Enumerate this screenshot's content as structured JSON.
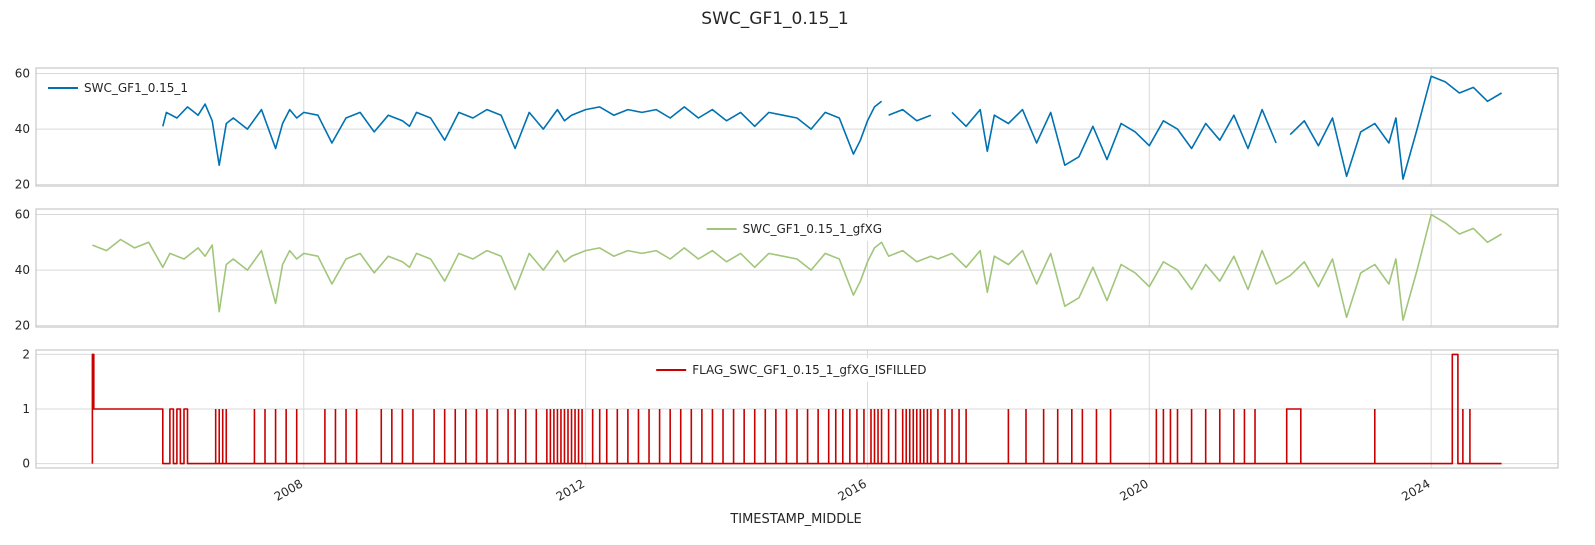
{
  "figure": {
    "suptitle": "SWC_GF1_0.15_1"
  },
  "chart_data": [
    {
      "type": "line",
      "legend_placement": "upper-left",
      "grid": true,
      "ylim": [
        19.5,
        62
      ],
      "yticks": [
        20,
        40,
        60
      ],
      "xlim": [
        2004.2,
        2025.8
      ],
      "xticks": [
        2008,
        2012,
        2016,
        2020,
        2024
      ],
      "series": [
        {
          "name": "SWC_GF1_0.15_1",
          "color": "#0072B2",
          "x": [
            2006.0,
            2006.05,
            2006.2,
            2006.35,
            2006.5,
            2006.6,
            2006.7,
            2006.8,
            2006.9,
            2007.0,
            2007.2,
            2007.4,
            2007.6,
            2007.7,
            2007.8,
            2007.9,
            2008.0,
            2008.2,
            2008.4,
            2008.6,
            2008.8,
            2009.0,
            2009.2,
            2009.4,
            2009.5,
            2009.6,
            2009.8,
            2010.0,
            2010.2,
            2010.4,
            2010.6,
            2010.8,
            2011.0,
            2011.2,
            2011.4,
            2011.6,
            2011.7,
            2011.8,
            2012.0,
            2012.2,
            2012.4,
            2012.6,
            2012.8,
            2013.0,
            2013.2,
            2013.4,
            2013.6,
            2013.8,
            2014.0,
            2014.2,
            2014.4,
            2014.6,
            2014.8,
            2015.0,
            2015.2,
            2015.4,
            2015.6,
            2015.8,
            2015.9,
            2016.0,
            2016.1,
            2016.2,
            null,
            2016.3,
            2016.5,
            2016.7,
            2016.9,
            null,
            2017.2,
            2017.4,
            2017.6,
            2017.7,
            2017.8,
            2018.0,
            2018.2,
            2018.4,
            2018.6,
            2018.8,
            2019.0,
            2019.2,
            2019.4,
            2019.6,
            2019.8,
            2020.0,
            2020.2,
            2020.4,
            2020.6,
            2020.8,
            2021.0,
            2021.2,
            2021.4,
            2021.6,
            2021.8,
            null,
            2022.0,
            2022.2,
            2022.4,
            2022.6,
            2022.8,
            2023.0,
            2023.2,
            2023.4,
            2023.5,
            2023.6,
            2023.8,
            2024.0,
            2024.2,
            2024.4,
            2024.6,
            2024.8,
            2025.0
          ],
          "y": [
            41,
            46,
            44,
            48,
            45,
            49,
            43,
            27,
            42,
            44,
            40,
            47,
            33,
            42,
            47,
            44,
            46,
            45,
            35,
            44,
            46,
            39,
            45,
            43,
            41,
            46,
            44,
            36,
            46,
            44,
            47,
            45,
            33,
            46,
            40,
            47,
            43,
            45,
            47,
            48,
            45,
            47,
            46,
            47,
            44,
            48,
            44,
            47,
            43,
            46,
            41,
            46,
            45,
            44,
            40,
            46,
            44,
            31,
            36,
            43,
            48,
            50,
            null,
            45,
            47,
            43,
            45,
            null,
            46,
            41,
            47,
            32,
            45,
            42,
            47,
            35,
            46,
            27,
            30,
            41,
            29,
            42,
            39,
            34,
            43,
            40,
            33,
            42,
            36,
            45,
            33,
            47,
            35,
            null,
            38,
            43,
            34,
            44,
            23,
            39,
            42,
            35,
            44,
            22,
            40,
            59,
            57,
            53,
            55,
            50,
            53
          ],
          "style": "solid"
        }
      ],
      "legend": [
        "SWC_GF1_0.15_1"
      ]
    },
    {
      "type": "line",
      "legend_placement": "upper-center",
      "grid": true,
      "ylim": [
        19.5,
        62
      ],
      "yticks": [
        20,
        40,
        60
      ],
      "xlim": [
        2004.2,
        2025.8
      ],
      "xticks": [
        2008,
        2012,
        2016,
        2020,
        2024
      ],
      "series": [
        {
          "name": "SWC_GF1_0.15_1_gfXG",
          "color": "#A1C67B",
          "x": [
            2005.0,
            2005.2,
            2005.4,
            2005.6,
            2005.8,
            2006.0,
            2006.1,
            2006.3,
            2006.5,
            2006.6,
            2006.7,
            2006.8,
            2006.9,
            2007.0,
            2007.2,
            2007.4,
            2007.6,
            2007.7,
            2007.8,
            2007.9,
            2008.0,
            2008.2,
            2008.4,
            2008.6,
            2008.8,
            2009.0,
            2009.2,
            2009.4,
            2009.5,
            2009.6,
            2009.8,
            2010.0,
            2010.2,
            2010.4,
            2010.6,
            2010.8,
            2011.0,
            2011.2,
            2011.4,
            2011.6,
            2011.7,
            2011.8,
            2012.0,
            2012.2,
            2012.4,
            2012.6,
            2012.8,
            2013.0,
            2013.2,
            2013.4,
            2013.6,
            2013.8,
            2014.0,
            2014.2,
            2014.4,
            2014.6,
            2014.8,
            2015.0,
            2015.2,
            2015.4,
            2015.6,
            2015.8,
            2015.9,
            2016.0,
            2016.1,
            2016.2,
            2016.3,
            2016.5,
            2016.7,
            2016.9,
            2017.0,
            2017.2,
            2017.4,
            2017.6,
            2017.7,
            2017.8,
            2018.0,
            2018.2,
            2018.4,
            2018.6,
            2018.8,
            2019.0,
            2019.2,
            2019.4,
            2019.6,
            2019.8,
            2020.0,
            2020.2,
            2020.4,
            2020.6,
            2020.8,
            2021.0,
            2021.2,
            2021.4,
            2021.6,
            2021.8,
            2022.0,
            2022.2,
            2022.4,
            2022.6,
            2022.8,
            2023.0,
            2023.2,
            2023.4,
            2023.5,
            2023.6,
            2023.8,
            2024.0,
            2024.2,
            2024.4,
            2024.6,
            2024.8,
            2025.0
          ],
          "y": [
            49,
            47,
            51,
            48,
            50,
            41,
            46,
            44,
            48,
            45,
            49,
            25,
            42,
            44,
            40,
            47,
            28,
            42,
            47,
            44,
            46,
            45,
            35,
            44,
            46,
            39,
            45,
            43,
            41,
            46,
            44,
            36,
            46,
            44,
            47,
            45,
            33,
            46,
            40,
            47,
            43,
            45,
            47,
            48,
            45,
            47,
            46,
            47,
            44,
            48,
            44,
            47,
            43,
            46,
            41,
            46,
            45,
            44,
            40,
            46,
            44,
            31,
            36,
            43,
            48,
            50,
            45,
            47,
            43,
            45,
            44,
            46,
            41,
            47,
            32,
            45,
            42,
            47,
            35,
            46,
            27,
            30,
            41,
            29,
            42,
            39,
            34,
            43,
            40,
            33,
            42,
            36,
            45,
            33,
            47,
            35,
            38,
            43,
            34,
            44,
            23,
            39,
            42,
            35,
            44,
            22,
            40,
            60,
            57,
            53,
            55,
            50,
            53
          ],
          "style": "solid"
        }
      ],
      "legend": [
        "SWC_GF1_0.15_1_gfXG"
      ]
    },
    {
      "type": "line",
      "legend_placement": "upper-center",
      "grid": true,
      "ylim": [
        -0.08,
        2.08
      ],
      "yticks": [
        0,
        1,
        2
      ],
      "xlim": [
        2004.2,
        2025.8
      ],
      "xticks": [
        2008,
        2012,
        2016,
        2020,
        2024
      ],
      "xtick_labels": [
        "2008",
        "2012",
        "2016",
        "2020",
        "2024"
      ],
      "xlabel": "TIMESTAMP_MIDDLE",
      "series": [
        {
          "name": "FLAG_SWC_GF1_0.15_1_gfXG_ISFILLED",
          "color": "#C80000",
          "x": [
            2005.0,
            2005.0,
            2005.02,
            2005.02,
            2006.0,
            2006.0,
            2006.1,
            2006.1,
            2006.15,
            2006.15,
            2006.2,
            2006.2,
            2006.25,
            2006.25,
            2006.3,
            2006.3,
            2006.35,
            2006.35,
            2024.3,
            2024.3,
            2024.38,
            2024.38,
            2025.0
          ],
          "y": [
            0,
            2,
            2,
            1,
            1,
            0,
            0,
            1,
            1,
            0,
            0,
            1,
            1,
            0,
            0,
            1,
            1,
            0,
            0,
            2,
            2,
            0,
            0
          ],
          "spikes": [
            2006.75,
            2006.8,
            2006.85,
            2006.9,
            2007.3,
            2007.45,
            2007.6,
            2007.75,
            2007.9,
            2008.3,
            2008.45,
            2008.6,
            2008.75,
            2009.1,
            2009.25,
            2009.4,
            2009.55,
            2009.85,
            2010.0,
            2010.15,
            2010.3,
            2010.45,
            2010.6,
            2010.75,
            2010.9,
            2011.0,
            2011.15,
            2011.3,
            2011.45,
            2011.5,
            2011.55,
            2011.6,
            2011.65,
            2011.7,
            2011.75,
            2011.8,
            2011.85,
            2011.9,
            2011.95,
            2012.1,
            2012.2,
            2012.3,
            2012.45,
            2012.6,
            2012.75,
            2012.9,
            2013.05,
            2013.2,
            2013.35,
            2013.5,
            2013.65,
            2013.8,
            2013.95,
            2014.1,
            2014.25,
            2014.4,
            2014.55,
            2014.7,
            2014.85,
            2015.0,
            2015.15,
            2015.3,
            2015.45,
            2015.55,
            2015.65,
            2015.75,
            2015.85,
            2015.95,
            2016.05,
            2016.1,
            2016.15,
            2016.2,
            2016.3,
            2016.4,
            2016.5,
            2016.55,
            2016.6,
            2016.65,
            2016.7,
            2016.75,
            2016.8,
            2016.85,
            2016.9,
            2017.0,
            2017.1,
            2017.2,
            2017.3,
            2017.4,
            2018.0,
            2018.25,
            2018.5,
            2018.7,
            2018.9,
            2019.05,
            2019.25,
            2019.45,
            2020.1,
            2020.2,
            2020.3,
            2020.4,
            2020.6,
            2020.8,
            2021.0,
            2021.2,
            2021.35,
            2021.5,
            2023.2,
            2024.45,
            2024.55
          ],
          "plateaus": [
            [
              2021.95,
              2022.15
            ]
          ],
          "style": "step"
        }
      ],
      "legend": [
        "FLAG_SWC_GF1_0.15_1_gfXG_ISFILLED"
      ]
    }
  ]
}
